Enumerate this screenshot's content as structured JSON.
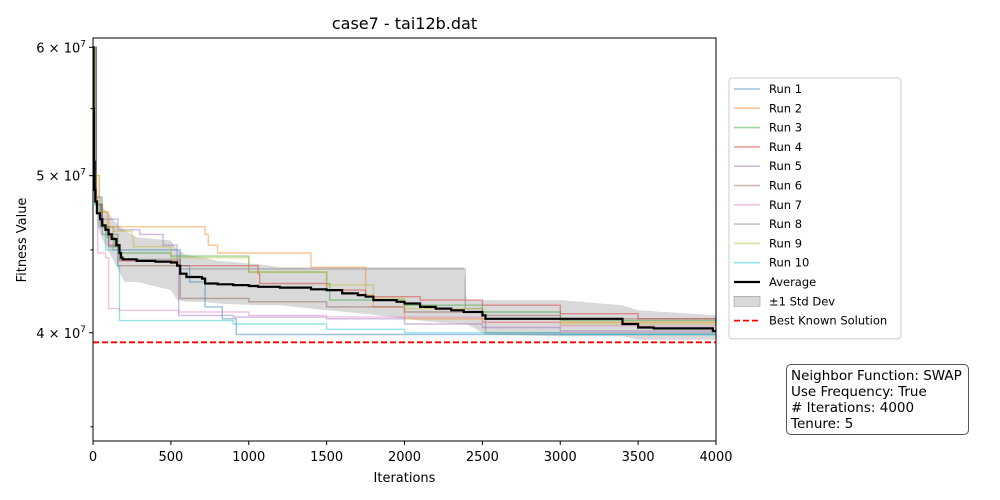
{
  "chart_data": {
    "type": "line",
    "title": "case7 - tai12b.dat",
    "xlabel": "Iterations",
    "ylabel": "Fitness Value",
    "xlim": [
      0,
      4000
    ],
    "ylim": [
      34300000,
      60800000
    ],
    "yscale": "log",
    "xticks": [
      0,
      500,
      1000,
      1500,
      2000,
      2500,
      3000,
      3500,
      4000
    ],
    "yticks": [
      {
        "value": 40000000,
        "mantissa": "4",
        "exp": "7"
      },
      {
        "value": 50000000,
        "mantissa": "5",
        "exp": "7"
      },
      {
        "value": 60000000,
        "mantissa": "6",
        "exp": "7"
      }
    ],
    "grid": false,
    "legend_position": "right",
    "series": [
      {
        "name": "Run 1",
        "color": "#1f77b4",
        "points": [
          [
            0,
            60000000
          ],
          [
            20,
            48000000
          ],
          [
            60,
            46500000
          ],
          [
            100,
            45200000
          ],
          [
            160,
            45000000
          ],
          [
            560,
            44000000
          ],
          [
            620,
            43000000
          ],
          [
            720,
            41500000
          ],
          [
            830,
            40800000
          ],
          [
            920,
            39900000
          ],
          [
            4000,
            39900000
          ]
        ]
      },
      {
        "name": "Run 2",
        "color": "#ff7f0e",
        "points": [
          [
            0,
            60000000
          ],
          [
            15,
            50000000
          ],
          [
            40,
            47500000
          ],
          [
            100,
            46500000
          ],
          [
            720,
            46000000
          ],
          [
            740,
            45300000
          ],
          [
            800,
            44800000
          ],
          [
            1400,
            43900000
          ],
          [
            1740,
            43900000
          ],
          [
            1750,
            42200000
          ],
          [
            1800,
            41500000
          ],
          [
            2000,
            40800000
          ],
          [
            2500,
            40600000
          ],
          [
            4000,
            40600000
          ]
        ]
      },
      {
        "name": "Run 3",
        "color": "#2ca02c",
        "points": [
          [
            0,
            60000000
          ],
          [
            20,
            48500000
          ],
          [
            50,
            46500000
          ],
          [
            90,
            45800000
          ],
          [
            140,
            45200000
          ],
          [
            170,
            44800000
          ],
          [
            500,
            44600000
          ],
          [
            1000,
            43600000
          ],
          [
            1500,
            42900000
          ],
          [
            1520,
            41900000
          ],
          [
            2000,
            41600000
          ],
          [
            2500,
            41200000
          ],
          [
            3000,
            40700000
          ],
          [
            4000,
            40400000
          ]
        ]
      },
      {
        "name": "Run 4",
        "color": "#d62728",
        "points": [
          [
            0,
            60000000
          ],
          [
            20,
            48000000
          ],
          [
            50,
            46500000
          ],
          [
            100,
            45300000
          ],
          [
            170,
            44300000
          ],
          [
            560,
            44000000
          ],
          [
            1060,
            43500000
          ],
          [
            1070,
            42900000
          ],
          [
            1500,
            42500000
          ],
          [
            1750,
            42100000
          ],
          [
            2100,
            41900000
          ],
          [
            2500,
            41600000
          ],
          [
            3000,
            41100000
          ],
          [
            3500,
            40800000
          ],
          [
            4000,
            40400000
          ]
        ]
      },
      {
        "name": "Run 5",
        "color": "#9467bd",
        "points": [
          [
            0,
            60000000
          ],
          [
            20,
            48500000
          ],
          [
            60,
            47000000
          ],
          [
            160,
            46300000
          ],
          [
            300,
            46000000
          ],
          [
            450,
            45300000
          ],
          [
            540,
            44100000
          ],
          [
            550,
            41000000
          ],
          [
            900,
            40900000
          ],
          [
            1500,
            40800000
          ],
          [
            2000,
            40500000
          ],
          [
            2500,
            40300000
          ],
          [
            3000,
            40100000
          ],
          [
            4000,
            40000000
          ]
        ]
      },
      {
        "name": "Run 6",
        "color": "#8c564b",
        "points": [
          [
            0,
            60000000
          ],
          [
            20,
            48000000
          ],
          [
            60,
            46000000
          ],
          [
            160,
            44000000
          ],
          [
            540,
            44000000
          ],
          [
            560,
            42000000
          ],
          [
            1000,
            41800000
          ],
          [
            1500,
            41500000
          ],
          [
            2000,
            41200000
          ],
          [
            2500,
            41000000
          ],
          [
            3000,
            40800000
          ],
          [
            4000,
            40600000
          ]
        ]
      },
      {
        "name": "Run 7",
        "color": "#e377c2",
        "points": [
          [
            0,
            60000000
          ],
          [
            10,
            48500000
          ],
          [
            30,
            44800000
          ],
          [
            80,
            44500000
          ],
          [
            100,
            41400000
          ],
          [
            170,
            41300000
          ],
          [
            550,
            41200000
          ],
          [
            1000,
            41000000
          ],
          [
            1500,
            40900000
          ],
          [
            2500,
            40600000
          ],
          [
            3000,
            40400000
          ],
          [
            4000,
            40200000
          ]
        ]
      },
      {
        "name": "Run 8",
        "color": "#7f7f7f",
        "points": [
          [
            0,
            60000000
          ],
          [
            20,
            48000000
          ],
          [
            60,
            46500000
          ],
          [
            130,
            45000000
          ],
          [
            170,
            44400000
          ],
          [
            540,
            44400000
          ],
          [
            560,
            43800000
          ],
          [
            2380,
            43800000
          ],
          [
            2390,
            41400000
          ],
          [
            2500,
            41000000
          ],
          [
            2520,
            40000000
          ],
          [
            3000,
            40000000
          ],
          [
            4000,
            39900000
          ]
        ]
      },
      {
        "name": "Run 9",
        "color": "#bcbd22",
        "points": [
          [
            0,
            60000000
          ],
          [
            15,
            50000000
          ],
          [
            40,
            47500000
          ],
          [
            90,
            46500000
          ],
          [
            140,
            46200000
          ],
          [
            250,
            45900000
          ],
          [
            260,
            45200000
          ],
          [
            500,
            44500000
          ],
          [
            1000,
            43600000
          ],
          [
            1500,
            42800000
          ],
          [
            1800,
            42000000
          ],
          [
            2000,
            41400000
          ],
          [
            2500,
            40800000
          ],
          [
            3000,
            40500000
          ],
          [
            4000,
            40300000
          ]
        ]
      },
      {
        "name": "Run 10",
        "color": "#17becf",
        "points": [
          [
            0,
            60000000
          ],
          [
            10,
            48000000
          ],
          [
            40,
            46500000
          ],
          [
            80,
            45000000
          ],
          [
            160,
            44000000
          ],
          [
            170,
            40700000
          ],
          [
            900,
            40500000
          ],
          [
            1500,
            40200000
          ],
          [
            2000,
            40000000
          ],
          [
            3000,
            39900000
          ],
          [
            4000,
            39900000
          ]
        ]
      },
      {
        "name": "Average",
        "color": "#000000",
        "points": [
          [
            0,
            60000000
          ],
          [
            3,
            55000000
          ],
          [
            6,
            51000000
          ],
          [
            10,
            49000000
          ],
          [
            15,
            48200000
          ],
          [
            25,
            47400000
          ],
          [
            45,
            47000000
          ],
          [
            60,
            46600000
          ],
          [
            80,
            46300000
          ],
          [
            100,
            46000000
          ],
          [
            120,
            45700000
          ],
          [
            150,
            45300000
          ],
          [
            170,
            44800000
          ],
          [
            180,
            44500000
          ],
          [
            190,
            44400000
          ],
          [
            250,
            44400000
          ],
          [
            280,
            44300000
          ],
          [
            400,
            44250000
          ],
          [
            500,
            44200000
          ],
          [
            540,
            44000000
          ],
          [
            560,
            43500000
          ],
          [
            600,
            43300000
          ],
          [
            700,
            43200000
          ],
          [
            720,
            42900000
          ],
          [
            800,
            42850000
          ],
          [
            900,
            42800000
          ],
          [
            1000,
            42750000
          ],
          [
            1060,
            42700000
          ],
          [
            1200,
            42650000
          ],
          [
            1400,
            42550000
          ],
          [
            1500,
            42500000
          ],
          [
            1600,
            42300000
          ],
          [
            1700,
            42200000
          ],
          [
            1750,
            42100000
          ],
          [
            1800,
            41900000
          ],
          [
            1950,
            41800000
          ],
          [
            2000,
            41700000
          ],
          [
            2100,
            41500000
          ],
          [
            2200,
            41400000
          ],
          [
            2300,
            41300000
          ],
          [
            2380,
            41200000
          ],
          [
            2500,
            41000000
          ],
          [
            2520,
            40800000
          ],
          [
            2800,
            40800000
          ],
          [
            3000,
            40800000
          ],
          [
            3380,
            40800000
          ],
          [
            3400,
            40500000
          ],
          [
            3500,
            40300000
          ],
          [
            3600,
            40250000
          ],
          [
            3960,
            40250000
          ],
          [
            3980,
            40100000
          ],
          [
            4000,
            40050000
          ]
        ]
      },
      {
        "name": "Best Known Solution",
        "color": "#ff0000",
        "style": "dashed",
        "y": 39464925
      }
    ],
    "std_band": {
      "name": "±1 Std Dev",
      "color": "#bfbfbf",
      "upper": [
        [
          0,
          60000000
        ],
        [
          30,
          48300000
        ],
        [
          60,
          47800000
        ],
        [
          100,
          47400000
        ],
        [
          160,
          46600000
        ],
        [
          200,
          46300000
        ],
        [
          280,
          45800000
        ],
        [
          500,
          45600000
        ],
        [
          540,
          45000000
        ],
        [
          600,
          44700000
        ],
        [
          720,
          44500000
        ],
        [
          800,
          44300000
        ],
        [
          1060,
          44100000
        ],
        [
          1200,
          43900000
        ],
        [
          1500,
          43900000
        ],
        [
          1750,
          43900000
        ],
        [
          2000,
          43900000
        ],
        [
          2380,
          43900000
        ],
        [
          2400,
          41900000
        ],
        [
          2520,
          41900000
        ],
        [
          3000,
          41900000
        ],
        [
          3400,
          41600000
        ],
        [
          3500,
          41300000
        ],
        [
          4000,
          41000000
        ]
      ],
      "lower": [
        [
          0,
          60000000
        ],
        [
          30,
          46500000
        ],
        [
          60,
          45700000
        ],
        [
          100,
          44900000
        ],
        [
          160,
          43800000
        ],
        [
          200,
          43000000
        ],
        [
          280,
          43000000
        ],
        [
          500,
          42500000
        ],
        [
          540,
          41900000
        ],
        [
          600,
          41800000
        ],
        [
          720,
          41800000
        ],
        [
          800,
          41700000
        ],
        [
          1060,
          41600000
        ],
        [
          1200,
          41600000
        ],
        [
          1500,
          41300000
        ],
        [
          1750,
          41100000
        ],
        [
          2000,
          40800000
        ],
        [
          2200,
          40600000
        ],
        [
          2380,
          40500000
        ],
        [
          2400,
          40500000
        ],
        [
          2520,
          39900000
        ],
        [
          3000,
          39800000
        ],
        [
          3400,
          39800000
        ],
        [
          3500,
          39600000
        ],
        [
          4000,
          39600000
        ]
      ]
    }
  },
  "info_box": {
    "line1": "Neighbor Function: SWAP",
    "line2": "Use Frequency: True",
    "line3": "# Iterations: 4000",
    "line4": "Tenure: 5"
  }
}
